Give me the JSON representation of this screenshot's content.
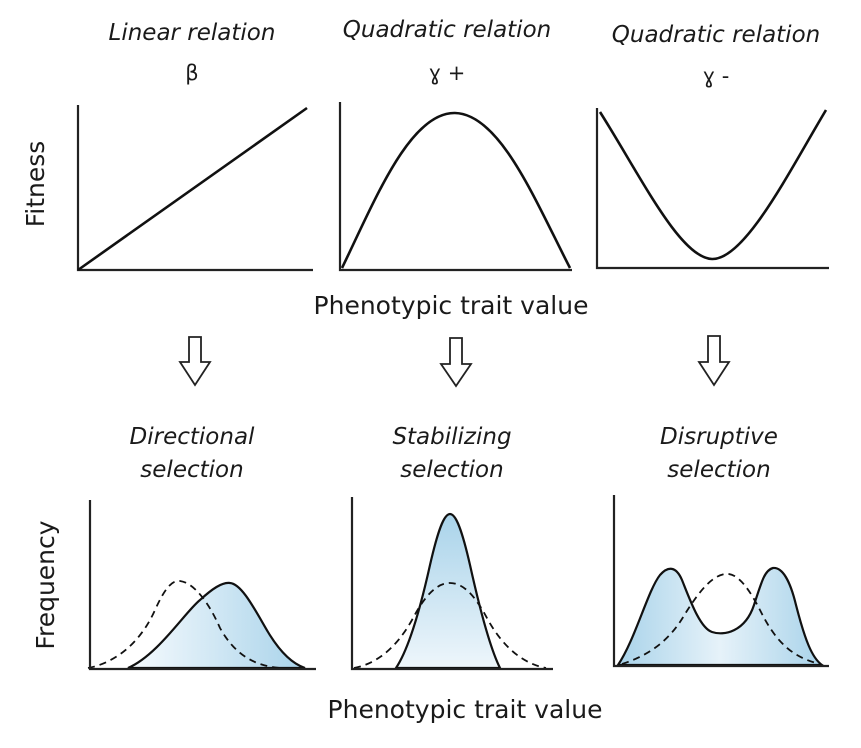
{
  "top_row": {
    "y_axis_label": "Fitness",
    "x_axis_label": "Phenotypic trait value",
    "panels": [
      {
        "title": "Linear relation",
        "symbol": "β",
        "shape": "linear"
      },
      {
        "title": "Quadratic relation",
        "symbol": "ɣ +",
        "shape": "concave"
      },
      {
        "title": "Quadratic relation",
        "symbol": "ɣ -",
        "shape": "convex"
      }
    ]
  },
  "bottom_row": {
    "y_axis_label": "Frequency",
    "x_axis_label": "Phenotypic trait value",
    "panels": [
      {
        "title_line1": "Directional",
        "title_line2": "selection"
      },
      {
        "title_line1": "Stabilizing",
        "title_line2": "selection"
      },
      {
        "title_line1": "Disruptive",
        "title_line2": "selection"
      }
    ]
  },
  "colors": {
    "fill_light": "#f2f8fc",
    "fill_dark": "#a9d3ea",
    "line": "#111111"
  }
}
